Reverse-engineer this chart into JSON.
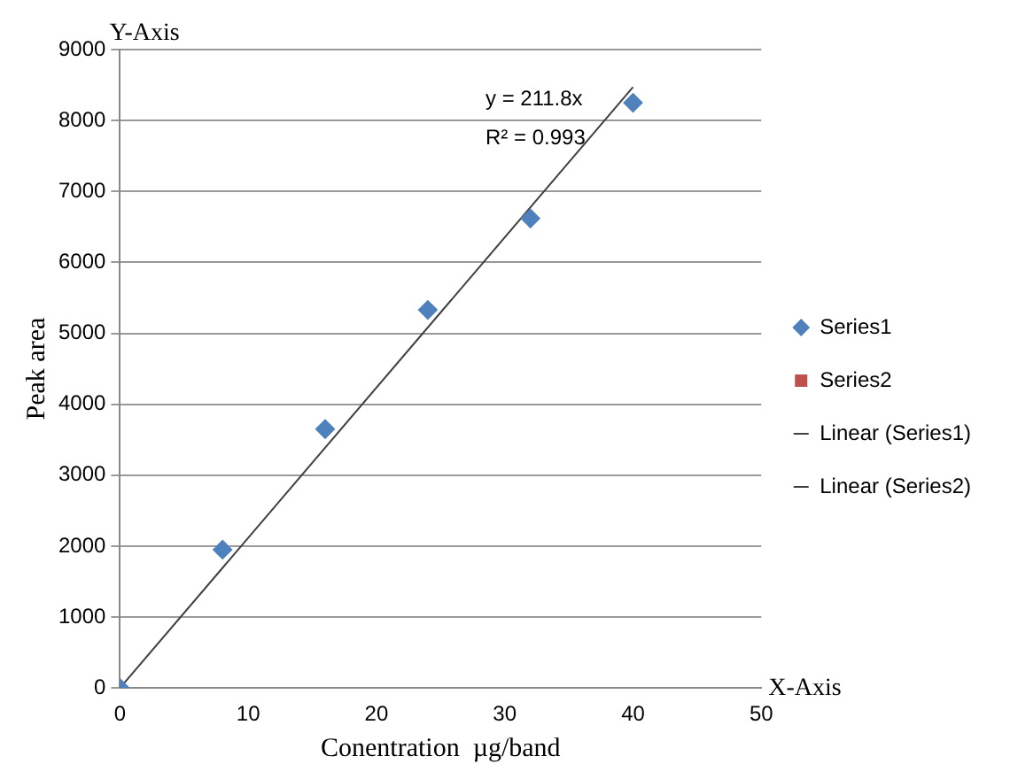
{
  "chart_data": {
    "type": "scatter",
    "xlabel": "Conentration  µg/band",
    "ylabel": "Peak area",
    "xlim": [
      0,
      50
    ],
    "xticks": [
      0,
      10,
      20,
      30,
      40,
      50
    ],
    "ylim": [
      0,
      9000
    ],
    "yticks": [
      0,
      1000,
      2000,
      3000,
      4000,
      5000,
      6000,
      7000,
      8000,
      9000
    ],
    "grid": "y",
    "legend": "right",
    "annotations": [
      "Y-Axis",
      "X-Axis",
      "y = 211.8x",
      "R² = 0.993"
    ],
    "series": [
      {
        "name": "Series1",
        "marker": "diamond",
        "color": "#4f81bd",
        "x": [
          0,
          8,
          16,
          24,
          32,
          40
        ],
        "values": [
          0,
          1950,
          3650,
          5330,
          6620,
          8250
        ]
      },
      {
        "name": "Series2",
        "marker": "square",
        "color": "#c0504d"
      },
      {
        "name": "Linear (Series1)",
        "type": "line",
        "marker": "none",
        "line_style": "solid",
        "color": "#404040",
        "x": [
          0,
          40
        ],
        "values": [
          0,
          8470
        ]
      },
      {
        "name": "Linear (Series2)",
        "type": "line",
        "marker": "none",
        "line_style": "solid",
        "color": "#404040"
      }
    ]
  }
}
